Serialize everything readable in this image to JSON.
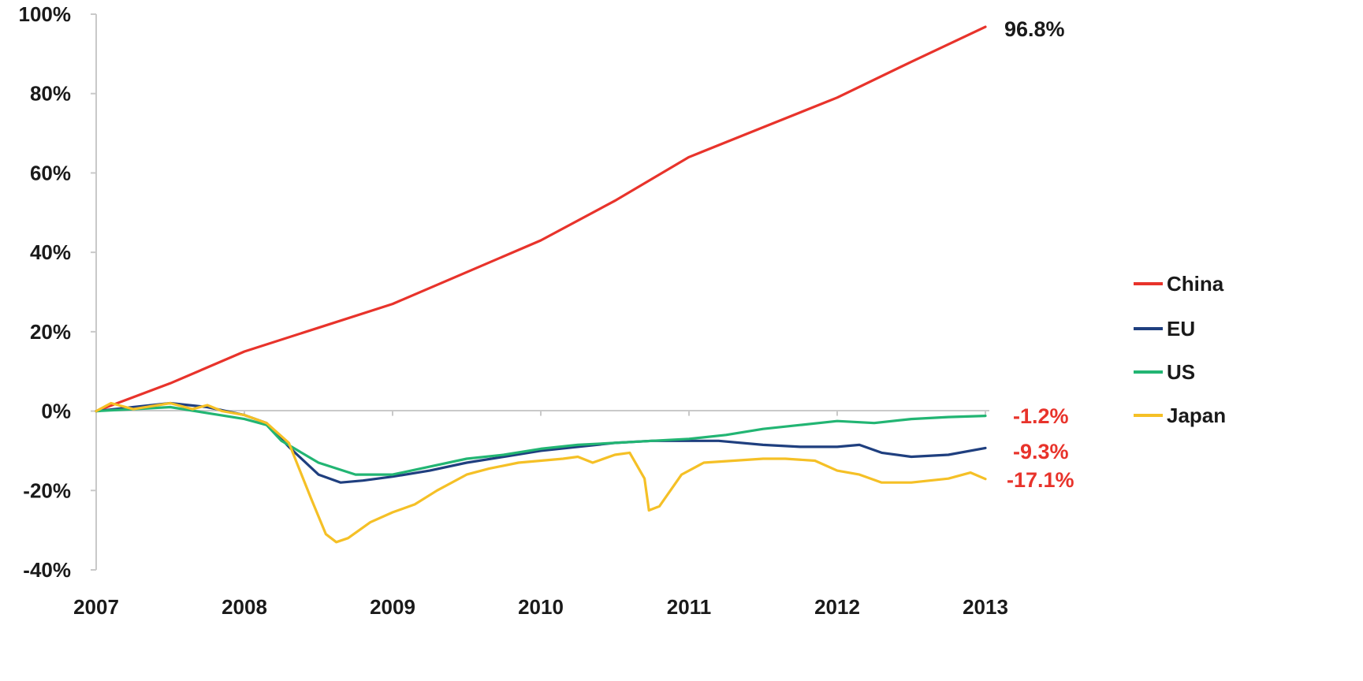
{
  "chart_data": {
    "type": "line",
    "title": "",
    "xlabel": "",
    "ylabel": "",
    "x_ticks": [
      "2007",
      "2008",
      "2009",
      "2010",
      "2011",
      "2012",
      "2013"
    ],
    "y_ticks": [
      "100%",
      "80%",
      "60%",
      "40%",
      "20%",
      "0%",
      "-20%",
      "-40%"
    ],
    "xlim": [
      2007,
      2013
    ],
    "ylim": [
      -40,
      100
    ],
    "grid": false,
    "legend_position": "right",
    "series": [
      {
        "name": "China",
        "color": "#e8332b",
        "end_label": "96.8%",
        "end_label_color": "#1a1a1a",
        "points": [
          [
            2007.0,
            0
          ],
          [
            2007.5,
            7
          ],
          [
            2008.0,
            15
          ],
          [
            2008.5,
            21
          ],
          [
            2009.0,
            27
          ],
          [
            2009.5,
            35
          ],
          [
            2010.0,
            43
          ],
          [
            2010.5,
            53
          ],
          [
            2011.0,
            64
          ],
          [
            2011.5,
            71.5
          ],
          [
            2012.0,
            79
          ],
          [
            2012.5,
            88
          ],
          [
            2013.0,
            96.8
          ]
        ]
      },
      {
        "name": "EU",
        "color": "#1f3f7f",
        "end_label": "-9.3%",
        "end_label_color": "#e8332b",
        "points": [
          [
            2007.0,
            0
          ],
          [
            2007.25,
            1
          ],
          [
            2007.5,
            2
          ],
          [
            2007.75,
            1
          ],
          [
            2008.0,
            -1
          ],
          [
            2008.15,
            -3
          ],
          [
            2008.3,
            -9
          ],
          [
            2008.5,
            -16
          ],
          [
            2008.65,
            -18
          ],
          [
            2008.8,
            -17.5
          ],
          [
            2009.0,
            -16.5
          ],
          [
            2009.25,
            -15
          ],
          [
            2009.5,
            -13
          ],
          [
            2009.75,
            -11.5
          ],
          [
            2010.0,
            -10
          ],
          [
            2010.25,
            -9
          ],
          [
            2010.5,
            -8
          ],
          [
            2010.75,
            -7.5
          ],
          [
            2011.0,
            -7.5
          ],
          [
            2011.2,
            -7.5
          ],
          [
            2011.5,
            -8.5
          ],
          [
            2011.75,
            -9
          ],
          [
            2012.0,
            -9
          ],
          [
            2012.15,
            -8.5
          ],
          [
            2012.3,
            -10.5
          ],
          [
            2012.5,
            -11.5
          ],
          [
            2012.75,
            -11
          ],
          [
            2013.0,
            -9.3
          ]
        ]
      },
      {
        "name": "US",
        "color": "#22b573",
        "end_label": "-1.2%",
        "end_label_color": "#e8332b",
        "points": [
          [
            2007.0,
            0
          ],
          [
            2007.25,
            0.5
          ],
          [
            2007.5,
            1
          ],
          [
            2007.75,
            -0.5
          ],
          [
            2008.0,
            -2
          ],
          [
            2008.15,
            -3.5
          ],
          [
            2008.25,
            -7.5
          ],
          [
            2008.5,
            -13
          ],
          [
            2008.75,
            -16
          ],
          [
            2009.0,
            -16
          ],
          [
            2009.25,
            -14
          ],
          [
            2009.5,
            -12
          ],
          [
            2009.75,
            -11
          ],
          [
            2010.0,
            -9.5
          ],
          [
            2010.25,
            -8.5
          ],
          [
            2010.5,
            -8
          ],
          [
            2010.75,
            -7.5
          ],
          [
            2011.0,
            -7
          ],
          [
            2011.25,
            -6
          ],
          [
            2011.5,
            -4.5
          ],
          [
            2011.75,
            -3.5
          ],
          [
            2012.0,
            -2.5
          ],
          [
            2012.25,
            -3
          ],
          [
            2012.5,
            -2
          ],
          [
            2012.75,
            -1.5
          ],
          [
            2013.0,
            -1.2
          ]
        ]
      },
      {
        "name": "Japan",
        "color": "#f5c026",
        "end_label": "-17.1%",
        "end_label_color": "#e8332b",
        "points": [
          [
            2007.0,
            0
          ],
          [
            2007.1,
            2
          ],
          [
            2007.25,
            0.5
          ],
          [
            2007.5,
            2
          ],
          [
            2007.65,
            0.5
          ],
          [
            2007.75,
            1.5
          ],
          [
            2007.85,
            0
          ],
          [
            2008.0,
            -1
          ],
          [
            2008.15,
            -3
          ],
          [
            2008.3,
            -8
          ],
          [
            2008.45,
            -22
          ],
          [
            2008.55,
            -31
          ],
          [
            2008.62,
            -33
          ],
          [
            2008.7,
            -32
          ],
          [
            2008.85,
            -28
          ],
          [
            2009.0,
            -25.5
          ],
          [
            2009.15,
            -23.5
          ],
          [
            2009.3,
            -20
          ],
          [
            2009.5,
            -16
          ],
          [
            2009.65,
            -14.5
          ],
          [
            2009.85,
            -13
          ],
          [
            2010.0,
            -12.5
          ],
          [
            2010.15,
            -12
          ],
          [
            2010.25,
            -11.5
          ],
          [
            2010.35,
            -13
          ],
          [
            2010.5,
            -11
          ],
          [
            2010.6,
            -10.5
          ],
          [
            2010.7,
            -17
          ],
          [
            2010.73,
            -25
          ],
          [
            2010.8,
            -24
          ],
          [
            2010.95,
            -16
          ],
          [
            2011.1,
            -13
          ],
          [
            2011.3,
            -12.5
          ],
          [
            2011.5,
            -12
          ],
          [
            2011.65,
            -12
          ],
          [
            2011.85,
            -12.5
          ],
          [
            2012.0,
            -15
          ],
          [
            2012.15,
            -16
          ],
          [
            2012.3,
            -18
          ],
          [
            2012.5,
            -18
          ],
          [
            2012.75,
            -17
          ],
          [
            2012.9,
            -15.5
          ],
          [
            2013.0,
            -17.1
          ]
        ]
      }
    ]
  }
}
